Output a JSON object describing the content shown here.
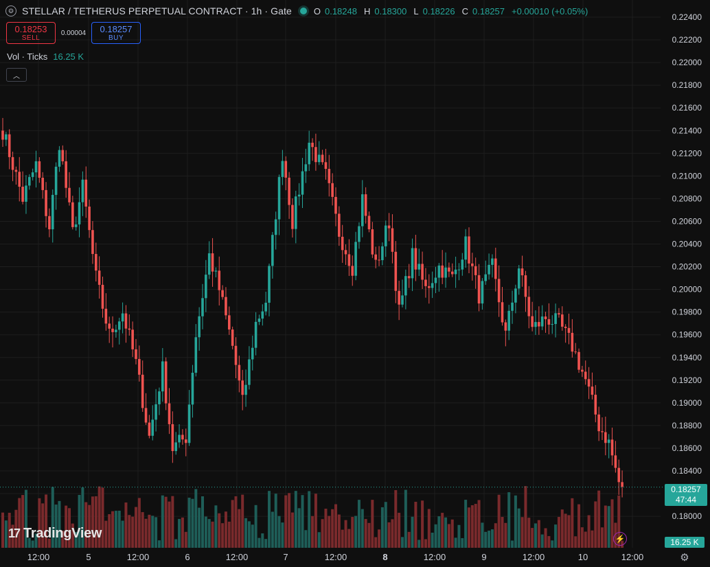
{
  "header": {
    "title": "STELLAR / TETHERUS PERPETUAL CONTRACT · 1h · Gate",
    "ohlc": [
      {
        "k": "O",
        "v": "0.18248"
      },
      {
        "k": "H",
        "v": "0.18300"
      },
      {
        "k": "L",
        "v": "0.18226"
      },
      {
        "k": "C",
        "v": "0.18257"
      }
    ],
    "change": "+0.00010 (+0.05%)",
    "status_color": "#26a69a"
  },
  "trade": {
    "sell_price": "0.18253",
    "sell_label": "SELL",
    "spread": "0.00004",
    "buy_price": "0.18257",
    "buy_label": "BUY"
  },
  "volume_legend": {
    "label": "Vol · Ticks",
    "value": "16.25 K"
  },
  "last_price": {
    "price": "0.18257",
    "countdown": "47:44"
  },
  "last_volume": "16.25 K",
  "logo_text": "TradingView",
  "icons": {
    "symbol": "symbol-logo-icon",
    "status": "market-open-dot-icon",
    "collapse": "chevron-up-icon",
    "bolt": "lightning-icon",
    "settings": "gear-icon"
  },
  "chart_data": {
    "type": "candlestick",
    "y_ticks": [
      "0.22400",
      "0.22200",
      "0.22000",
      "0.21800",
      "0.21600",
      "0.21400",
      "0.21200",
      "0.21000",
      "0.20800",
      "0.20600",
      "0.20400",
      "0.20200",
      "0.20000",
      "0.19800",
      "0.19600",
      "0.19400",
      "0.19200",
      "0.19000",
      "0.18800",
      "0.18600",
      "0.18400",
      "0.18200",
      "0.18000"
    ],
    "x_ticks": [
      {
        "label": "12:00",
        "bold": false
      },
      {
        "label": "5",
        "bold": false
      },
      {
        "label": "12:00",
        "bold": false
      },
      {
        "label": "6",
        "bold": false
      },
      {
        "label": "12:00",
        "bold": false
      },
      {
        "label": "7",
        "bold": false
      },
      {
        "label": "12:00",
        "bold": false
      },
      {
        "label": "8",
        "bold": true
      },
      {
        "label": "12:00",
        "bold": false
      },
      {
        "label": "9",
        "bold": false
      },
      {
        "label": "12:00",
        "bold": false
      },
      {
        "label": "10",
        "bold": false
      },
      {
        "label": "12:00",
        "bold": false
      }
    ],
    "ylim": [
      0.1792,
      0.2252
    ],
    "up_color": "#26a69a",
    "down_color": "#ef5350",
    "anchors": [
      [
        0,
        0.214
      ],
      [
        6,
        0.208
      ],
      [
        10,
        0.211
      ],
      [
        14,
        0.2055
      ],
      [
        17,
        0.213
      ],
      [
        21,
        0.205
      ],
      [
        24,
        0.209
      ],
      [
        28,
        0.201
      ],
      [
        32,
        0.196
      ],
      [
        36,
        0.198
      ],
      [
        40,
        0.1935
      ],
      [
        44,
        0.187
      ],
      [
        48,
        0.193
      ],
      [
        51,
        0.186
      ],
      [
        55,
        0.187
      ],
      [
        58,
        0.196
      ],
      [
        62,
        0.203
      ],
      [
        65,
        0.2
      ],
      [
        69,
        0.195
      ],
      [
        72,
        0.19
      ],
      [
        76,
        0.197
      ],
      [
        79,
        0.199
      ],
      [
        84,
        0.212
      ],
      [
        87,
        0.206
      ],
      [
        92,
        0.213
      ],
      [
        97,
        0.21
      ],
      [
        101,
        0.205
      ],
      [
        105,
        0.202
      ],
      [
        108,
        0.208
      ],
      [
        112,
        0.202
      ],
      [
        116,
        0.206
      ],
      [
        119,
        0.198
      ],
      [
        123,
        0.203
      ],
      [
        127,
        0.2
      ],
      [
        131,
        0.202
      ],
      [
        135,
        0.201
      ],
      [
        139,
        0.204
      ],
      [
        143,
        0.1995
      ],
      [
        147,
        0.202
      ],
      [
        151,
        0.196
      ],
      [
        155,
        0.202
      ],
      [
        159,
        0.1965
      ],
      [
        163,
        0.1975
      ],
      [
        167,
        0.197
      ],
      [
        171,
        0.195
      ],
      [
        175,
        0.192
      ],
      [
        179,
        0.188
      ],
      [
        182,
        0.1865
      ],
      [
        185,
        0.183
      ],
      [
        186,
        0.1826
      ]
    ]
  }
}
